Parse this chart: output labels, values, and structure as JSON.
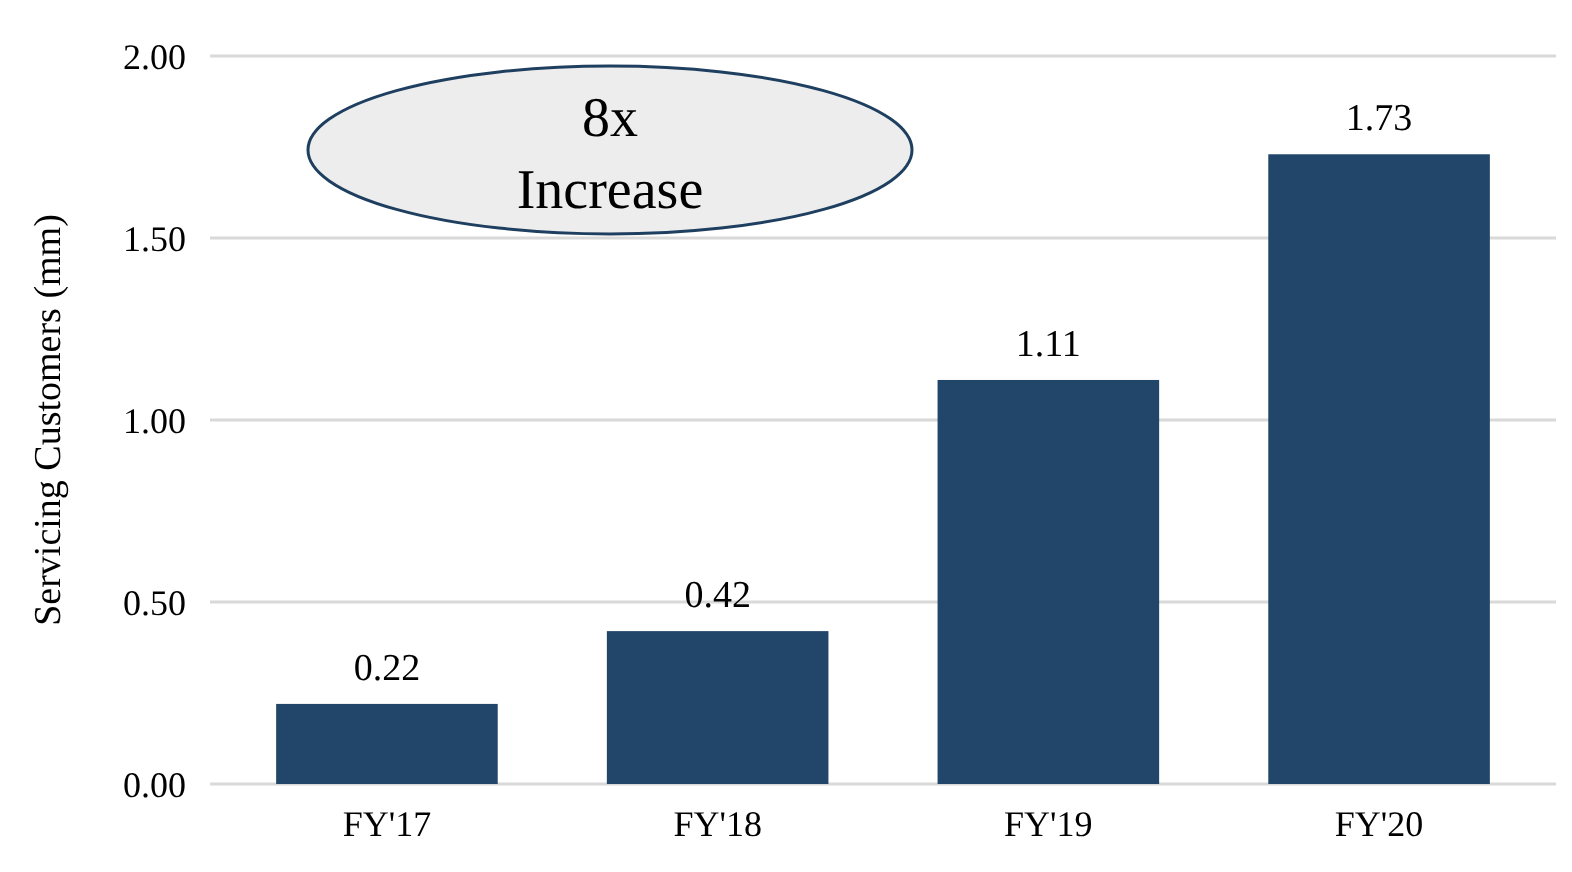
{
  "chart_data": {
    "type": "bar",
    "ylabel": "Servicing Customers (mm)",
    "categories": [
      "FY'17",
      "FY'18",
      "FY'19",
      "FY'20"
    ],
    "values": [
      0.22,
      0.42,
      1.11,
      1.73
    ],
    "color": "#21466a",
    "data_labels": true,
    "ylim": [
      0,
      2
    ],
    "yticks": [
      {
        "value": 0,
        "label": "0.00"
      },
      {
        "value": 0.5,
        "label": "0.50"
      },
      {
        "value": 1,
        "label": "1.00"
      },
      {
        "value": 1.5,
        "label": "1.50"
      },
      {
        "value": 2,
        "label": "2.00"
      }
    ],
    "grid": "y",
    "annotations": [
      "8x\nIncrease"
    ]
  }
}
